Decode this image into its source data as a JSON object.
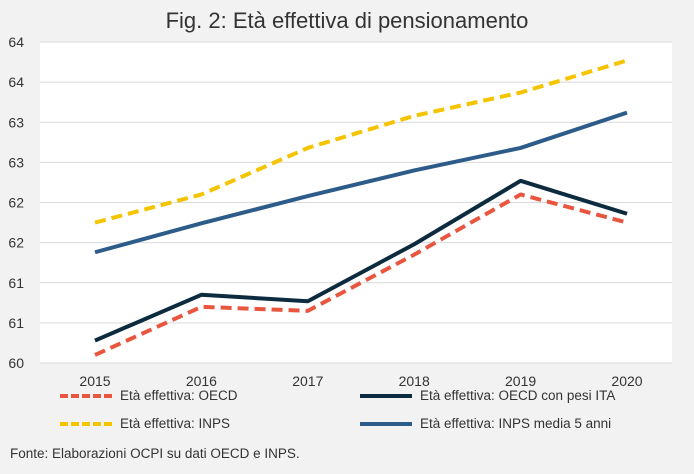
{
  "chart_data": {
    "type": "line",
    "title": "Fig. 2: Età effettiva di pensionamento",
    "xlabel": "",
    "ylabel": "",
    "categories": [
      "2015",
      "2016",
      "2017",
      "2018",
      "2019",
      "2020"
    ],
    "y_tick_labels": [
      "60",
      "61",
      "61",
      "62",
      "62",
      "63",
      "63",
      "64",
      "64"
    ],
    "ylim": [
      60,
      64
    ],
    "grid": true,
    "legend_position": "bottom",
    "series": [
      {
        "name": "Età effettiva: OECD",
        "values": [
          60.1,
          60.7,
          60.65,
          61.35,
          62.1,
          61.75
        ],
        "color": "#e8563f",
        "style": "dashed"
      },
      {
        "name": "Età effettiva: OECD con pesi ITA",
        "values": [
          60.28,
          60.85,
          60.77,
          61.48,
          62.27,
          61.86
        ],
        "color": "#0d2b3e",
        "style": "solid"
      },
      {
        "name": "Età effettiva: INPS",
        "values": [
          61.75,
          62.1,
          62.68,
          63.08,
          63.37,
          63.77
        ],
        "color": "#f5c400",
        "style": "dashed"
      },
      {
        "name": "Età effettiva: INPS media 5 anni",
        "values": [
          61.38,
          61.74,
          62.08,
          62.4,
          62.68,
          63.12
        ],
        "color": "#2e5c8a",
        "style": "solid"
      }
    ]
  },
  "source_note": "Fonte: Elaborazioni OCPI su dati OECD e INPS."
}
